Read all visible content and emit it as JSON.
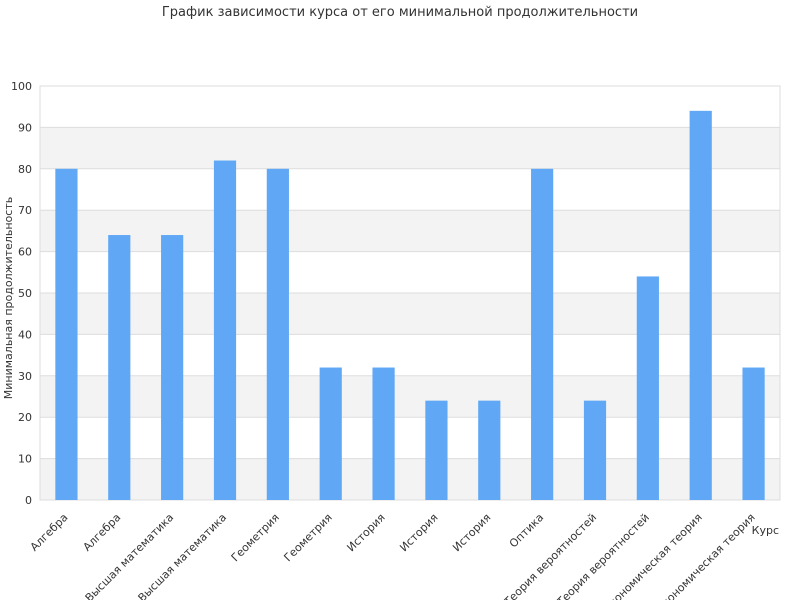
{
  "chart_data": {
    "type": "bar",
    "title": "График зависимости курса от его минимальной продолжительности",
    "xlabel": "Курс",
    "ylabel": "Минимальная продолжительность",
    "ylim": [
      0,
      100
    ],
    "yticks": [
      0,
      10,
      20,
      30,
      40,
      50,
      60,
      70,
      80,
      90,
      100
    ],
    "grid": true,
    "bar_color": "#60a8f5",
    "band_color": "#f3f3f3",
    "grid_color": "#dddddd",
    "categories": [
      "Алгебра",
      "Алгебра",
      "Высшая математика",
      "Высшая математика",
      "Геометрия",
      "Геометрия",
      "История",
      "История",
      "История",
      "Оптика",
      "Теория вероятностей",
      "Теория вероятностей",
      "Экономическая теория",
      "Экономическая теория"
    ],
    "values": [
      80,
      64,
      64,
      82,
      80,
      32,
      32,
      24,
      24,
      80,
      24,
      54,
      94,
      32
    ]
  }
}
